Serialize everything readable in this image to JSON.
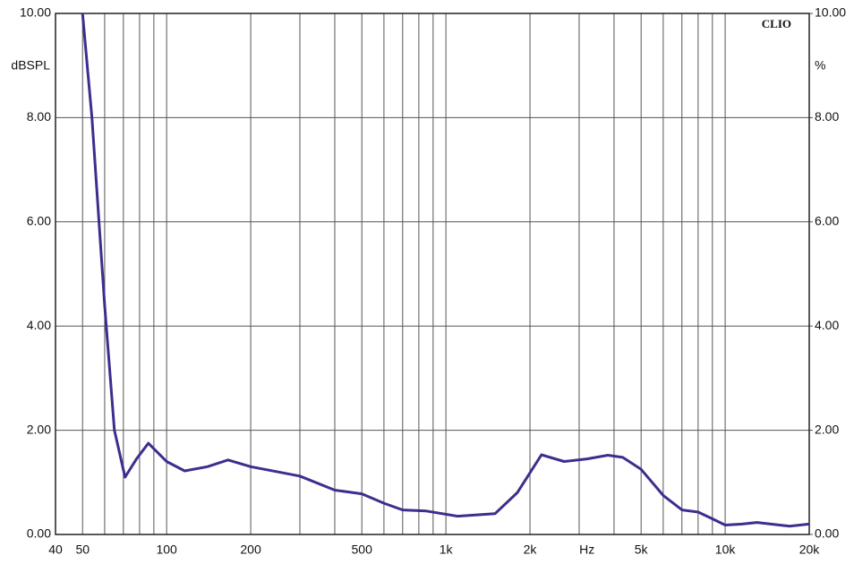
{
  "chart_data": {
    "type": "line",
    "brand": "CLIO",
    "y_label": "dBSPL",
    "y2_label": "%",
    "x_label": "Hz",
    "xscale": "log",
    "grid": true,
    "xlim": [
      40,
      20000
    ],
    "ylim": [
      0,
      10
    ],
    "y2lim": [
      0,
      10
    ],
    "xticks": [
      40,
      50,
      {
        "value": 60,
        "label": null
      },
      {
        "value": 70,
        "label": null
      },
      {
        "value": 80,
        "label": null
      },
      {
        "value": 90,
        "label": null
      },
      100,
      200,
      {
        "value": 300,
        "label": null
      },
      {
        "value": 400,
        "label": null
      },
      500,
      {
        "value": 600,
        "label": null
      },
      {
        "value": 700,
        "label": null
      },
      {
        "value": 800,
        "label": null
      },
      {
        "value": 900,
        "label": null
      },
      {
        "value": 1000,
        "label": "1k"
      },
      {
        "value": 2000,
        "label": "2k"
      },
      {
        "value": 3000,
        "label": null
      },
      {
        "value": 4000,
        "label": null
      },
      {
        "value": 5000,
        "label": "5k"
      },
      {
        "value": 6000,
        "label": null
      },
      {
        "value": 7000,
        "label": null
      },
      {
        "value": 8000,
        "label": null
      },
      {
        "value": 9000,
        "label": null
      },
      {
        "value": 10000,
        "label": "10k"
      },
      {
        "value": 20000,
        "label": "20k"
      }
    ],
    "yticks": [
      {
        "value": 0,
        "label": "0.00"
      },
      {
        "value": 2,
        "label": "2.00"
      },
      {
        "value": 4,
        "label": "4.00"
      },
      {
        "value": 6,
        "label": "6.00"
      },
      {
        "value": 8,
        "label": "8.00"
      },
      {
        "value": 10,
        "label": "10.00"
      }
    ],
    "y2ticks": [
      {
        "value": 0,
        "label": "0.00"
      },
      {
        "value": 2,
        "label": "2.00"
      },
      {
        "value": 4,
        "label": "4.00"
      },
      {
        "value": 6,
        "label": "6.00"
      },
      {
        "value": 8,
        "label": "8.00"
      },
      {
        "value": 10,
        "label": "10.00"
      }
    ],
    "x": [
      50,
      54,
      60,
      65,
      71,
      78,
      86,
      100,
      116,
      140,
      166,
      200,
      300,
      400,
      500,
      600,
      700,
      850,
      1100,
      1500,
      1800,
      2200,
      2650,
      3200,
      3800,
      4300,
      5000,
      6000,
      7000,
      8000,
      9000,
      10000,
      11500,
      13000,
      17000,
      20000
    ],
    "series": [
      {
        "name": null,
        "color": "#3b2f8e",
        "values": [
          10,
          8,
          4.4,
          2.0,
          1.1,
          1.45,
          1.75,
          1.4,
          1.22,
          1.3,
          1.43,
          1.3,
          1.12,
          0.85,
          0.78,
          0.6,
          0.47,
          0.45,
          0.35,
          0.4,
          0.8,
          1.53,
          1.4,
          1.45,
          1.52,
          1.48,
          1.25,
          0.75,
          0.47,
          0.43,
          0.3,
          0.18,
          0.2,
          0.23,
          0.16,
          0.2
        ]
      }
    ]
  }
}
